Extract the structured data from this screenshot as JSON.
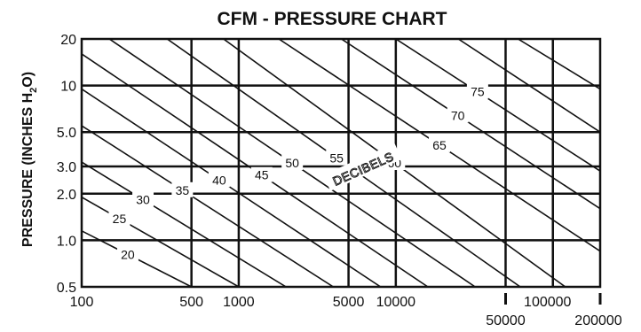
{
  "chart_data": {
    "type": "line",
    "title": "CFM - PRESSURE CHART",
    "ylabel": {
      "prefix": "PRESSURE (INCHES H",
      "subscript": "2",
      "suffix": "O)"
    },
    "xlabel": "",
    "x_scale": "log",
    "y_scale": "log",
    "xlim": [
      100,
      200000
    ],
    "ylim": [
      0.5,
      20
    ],
    "grid": true,
    "x_ticks_upper": [
      "100",
      "500",
      "1000",
      "5000",
      "10000",
      "100000"
    ],
    "x_ticks_upper_values": [
      100,
      500,
      1000,
      5000,
      10000,
      100000
    ],
    "x_ticks_lower": [
      "50000",
      "200000"
    ],
    "x_ticks_lower_values": [
      50000,
      200000
    ],
    "y_ticks": [
      "20",
      "10",
      "5.0",
      "3.0",
      "2.0",
      "1.0",
      "0.5"
    ],
    "y_tick_values": [
      20,
      10,
      5,
      3,
      2,
      1,
      0.5
    ],
    "annotation": "DECIBELS",
    "series": [
      {
        "name": "20",
        "points": [
          [
            100,
            1.15
          ],
          [
            500,
            0.5
          ]
        ]
      },
      {
        "name": "25",
        "points": [
          [
            100,
            1.9
          ],
          [
            1000,
            0.5
          ]
        ]
      },
      {
        "name": "30",
        "points": [
          [
            100,
            3.2
          ],
          [
            2000,
            0.5
          ]
        ]
      },
      {
        "name": "35",
        "points": [
          [
            100,
            5.5
          ],
          [
            4000,
            0.5
          ]
        ]
      },
      {
        "name": "40",
        "points": [
          [
            100,
            9.5
          ],
          [
            8000,
            0.5
          ]
        ]
      },
      {
        "name": "45",
        "points": [
          [
            100,
            16
          ],
          [
            16000,
            0.5
          ]
        ]
      },
      {
        "name": "50",
        "points": [
          [
            150,
            20
          ],
          [
            32000,
            0.5
          ]
        ]
      },
      {
        "name": "55",
        "points": [
          [
            350,
            20
          ],
          [
            62000,
            0.5
          ]
        ]
      },
      {
        "name": "60",
        "points": [
          [
            800,
            20
          ],
          [
            120000,
            0.5
          ]
        ]
      },
      {
        "name": "65",
        "points": [
          [
            1800,
            20
          ],
          [
            200000,
            0.85
          ]
        ]
      },
      {
        "name": "70",
        "points": [
          [
            4500,
            20
          ],
          [
            200000,
            1.6
          ]
        ]
      },
      {
        "name": "75",
        "points": [
          [
            10000,
            20
          ],
          [
            200000,
            2.8
          ]
        ]
      },
      {
        "name": "",
        "points": [
          [
            25000,
            20
          ],
          [
            200000,
            5.0
          ]
        ]
      },
      {
        "name": "",
        "points": [
          [
            60000,
            20
          ],
          [
            200000,
            9.5
          ]
        ]
      }
    ]
  }
}
